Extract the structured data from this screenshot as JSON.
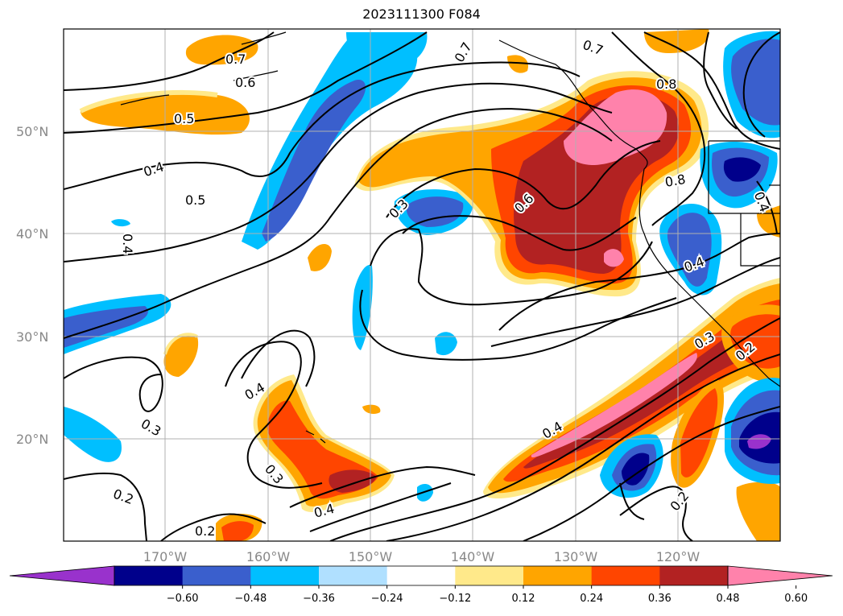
{
  "title": "2023111300 F084",
  "lat_labels": [
    "50°N",
    "40°N",
    "30°N",
    "20°N"
  ],
  "lon_labels": [
    "170°W",
    "160°W",
    "150°W",
    "140°W",
    "130°W",
    "120°W"
  ],
  "colorbar": {
    "ticks": [
      "−0.60",
      "−0.48",
      "−0.36",
      "−0.24",
      "−0.12",
      "0.12",
      "0.24",
      "0.36",
      "0.48",
      "0.60"
    ],
    "colors": [
      "#9932cc",
      "#00008b",
      "#3a5fcd",
      "#00bfff",
      "#b0e0ff",
      "#ffffff",
      "#ffe98a",
      "#ffa500",
      "#ff4500",
      "#b22222",
      "#ff82ab"
    ]
  },
  "contour_labels": [
    {
      "text": "0.7"
    },
    {
      "text": "0.6"
    },
    {
      "text": "0.7"
    },
    {
      "text": "0.7"
    },
    {
      "text": "0.8"
    },
    {
      "text": "0.5"
    },
    {
      "text": "0.4"
    },
    {
      "text": "0.5"
    },
    {
      "text": "0.3"
    },
    {
      "text": "0.6"
    },
    {
      "text": "0.8"
    },
    {
      "text": "0.4"
    },
    {
      "text": "0.4"
    },
    {
      "text": "0.4"
    },
    {
      "text": "0.3"
    },
    {
      "text": "0.2"
    },
    {
      "text": "0.4"
    },
    {
      "text": "0.3"
    },
    {
      "text": "0.3"
    },
    {
      "text": "0.4"
    },
    {
      "text": "0.2"
    },
    {
      "text": "0.2"
    },
    {
      "text": "0.2"
    },
    {
      "text": "0.4"
    }
  ]
}
